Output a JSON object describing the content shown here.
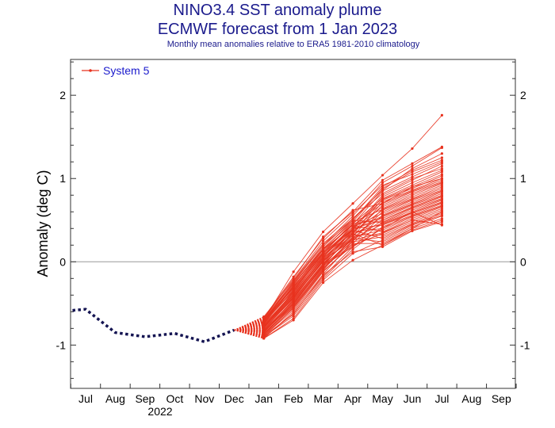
{
  "chart_data": {
    "type": "line",
    "title": "NINO3.4 SST anomaly plume",
    "subtitle": "ECMWF forecast from 1 Jan 2023",
    "caption": "Monthly mean anomalies relative to ERA5 1981-2010 climatology",
    "ylabel": "Anomaly (deg C)",
    "xlabel": "",
    "x_ticks": [
      "Jul",
      "Aug",
      "Sep",
      "Oct",
      "Nov",
      "Dec",
      "Jan",
      "Feb",
      "Mar",
      "Apr",
      "May",
      "Jun",
      "Jul",
      "Aug",
      "Sep"
    ],
    "year_label": "2022",
    "y_ticks": [
      "-1",
      "0",
      "1",
      "2"
    ],
    "y_tick_values": [
      -1,
      0,
      1,
      2
    ],
    "ylim": [
      -1.52,
      2.43
    ],
    "zero_line": true,
    "grid": false,
    "legend": {
      "position": "top-left",
      "entries": [
        "System 5"
      ]
    },
    "colors": {
      "forecast": "#e8321e",
      "observed": "#141452",
      "title": "#1a1a8c"
    },
    "observed": {
      "x": [
        "Jun",
        "Jul",
        "Aug",
        "Sep",
        "Oct",
        "Nov",
        "Dec"
      ],
      "y": [
        -0.6,
        -0.57,
        -0.85,
        -0.9,
        -0.86,
        -0.96,
        -0.82
      ]
    },
    "forecast": {
      "name": "System 5",
      "start": {
        "x": "Dec",
        "y": -0.82
      },
      "x": [
        "Jan",
        "Feb",
        "Mar",
        "Apr",
        "May",
        "Jun",
        "Jul"
      ],
      "members": [
        [
          -0.7,
          -0.12,
          0.36,
          0.7,
          1.04,
          1.36,
          1.76
        ],
        [
          -0.68,
          -0.2,
          0.3,
          0.6,
          0.98,
          1.18,
          1.38
        ],
        [
          -0.72,
          -0.25,
          0.2,
          0.55,
          0.95,
          1.15,
          1.37
        ],
        [
          -0.75,
          -0.3,
          0.15,
          0.5,
          0.9,
          1.1,
          1.25
        ],
        [
          -0.8,
          -0.35,
          0.1,
          0.48,
          0.88,
          1.08,
          1.22
        ],
        [
          -0.66,
          -0.22,
          0.25,
          0.58,
          0.92,
          1.05,
          1.2
        ],
        [
          -0.78,
          -0.4,
          0.05,
          0.45,
          0.85,
          1.02,
          1.18
        ],
        [
          -0.82,
          -0.42,
          0.0,
          0.4,
          0.8,
          0.98,
          1.15
        ],
        [
          -0.74,
          -0.28,
          0.18,
          0.52,
          0.82,
          1.0,
          1.12
        ],
        [
          -0.85,
          -0.45,
          -0.02,
          0.38,
          0.78,
          0.95,
          1.1
        ],
        [
          -0.7,
          -0.32,
          0.12,
          0.46,
          0.76,
          0.92,
          1.08
        ],
        [
          -0.88,
          -0.5,
          -0.05,
          0.35,
          0.75,
          0.9,
          1.05
        ],
        [
          -0.76,
          -0.38,
          0.08,
          0.42,
          0.74,
          0.88,
          1.03
        ],
        [
          -0.9,
          -0.55,
          -0.1,
          0.3,
          0.72,
          0.86,
          1.0
        ],
        [
          -0.72,
          -0.3,
          0.14,
          0.44,
          0.7,
          0.85,
          0.98
        ],
        [
          -0.84,
          -0.48,
          -0.04,
          0.34,
          0.68,
          0.84,
          0.96
        ],
        [
          -0.79,
          -0.36,
          0.06,
          0.4,
          0.66,
          0.82,
          0.95
        ],
        [
          -0.92,
          -0.6,
          -0.15,
          0.25,
          0.64,
          0.8,
          0.94
        ],
        [
          -0.69,
          -0.26,
          0.16,
          0.48,
          0.63,
          0.78,
          0.92
        ],
        [
          -0.81,
          -0.44,
          0.02,
          0.36,
          0.62,
          0.76,
          0.9
        ],
        [
          -0.86,
          -0.52,
          -0.08,
          0.28,
          0.6,
          0.75,
          0.88
        ],
        [
          -0.73,
          -0.34,
          0.1,
          0.42,
          0.58,
          0.74,
          0.86
        ],
        [
          -0.89,
          -0.58,
          -0.12,
          0.22,
          0.56,
          0.72,
          0.85
        ],
        [
          -0.77,
          -0.4,
          0.04,
          0.38,
          0.55,
          0.7,
          0.84
        ],
        [
          -0.83,
          -0.46,
          -0.03,
          0.32,
          0.54,
          0.69,
          0.82
        ],
        [
          -0.71,
          -0.29,
          0.12,
          0.45,
          0.52,
          0.68,
          0.8
        ],
        [
          -0.87,
          -0.54,
          -0.09,
          0.26,
          0.5,
          0.66,
          0.79
        ],
        [
          -0.75,
          -0.37,
          0.07,
          0.4,
          0.5,
          0.65,
          0.78
        ],
        [
          -0.91,
          -0.62,
          -0.18,
          0.18,
          0.48,
          0.64,
          0.76
        ],
        [
          -0.68,
          -0.24,
          0.2,
          0.5,
          0.47,
          0.62,
          0.75
        ],
        [
          -0.8,
          -0.43,
          0.0,
          0.34,
          0.46,
          0.6,
          0.74
        ],
        [
          -0.85,
          -0.5,
          -0.06,
          0.28,
          0.45,
          0.59,
          0.72
        ],
        [
          -0.74,
          -0.33,
          0.1,
          0.4,
          0.44,
          0.58,
          0.71
        ],
        [
          -0.9,
          -0.65,
          -0.2,
          0.15,
          0.42,
          0.56,
          0.7
        ],
        [
          -0.78,
          -0.41,
          0.03,
          0.36,
          0.4,
          0.55,
          0.68
        ],
        [
          -0.82,
          -0.47,
          -0.02,
          0.3,
          0.38,
          0.54,
          0.67
        ],
        [
          -0.7,
          -0.27,
          0.15,
          0.44,
          0.36,
          0.52,
          0.66
        ],
        [
          -0.88,
          -0.56,
          -0.11,
          0.2,
          0.34,
          0.5,
          0.64
        ],
        [
          -0.76,
          -0.39,
          0.05,
          0.32,
          0.32,
          0.48,
          0.62
        ],
        [
          -0.84,
          -0.49,
          -0.04,
          0.24,
          0.3,
          0.46,
          0.6
        ],
        [
          -0.72,
          -0.31,
          0.11,
          0.38,
          0.28,
          0.45,
          0.58
        ],
        [
          -0.92,
          -0.68,
          -0.22,
          0.1,
          0.26,
          0.44,
          0.56
        ],
        [
          -0.79,
          -0.42,
          0.01,
          0.28,
          0.24,
          0.42,
          0.55
        ],
        [
          -0.86,
          -0.53,
          -0.07,
          0.22,
          0.22,
          0.4,
          0.52
        ],
        [
          -0.73,
          -0.35,
          0.09,
          0.34,
          0.2,
          0.38,
          0.5
        ],
        [
          -0.89,
          -0.63,
          -0.16,
          0.12,
          0.18,
          0.37,
          0.48
        ],
        [
          -0.77,
          -0.44,
          0.02,
          0.26,
          0.35,
          0.5,
          0.45
        ],
        [
          -0.83,
          -0.51,
          -0.05,
          0.18,
          0.4,
          0.6,
          0.44
        ],
        [
          -0.67,
          -0.18,
          0.28,
          0.62,
          0.7,
          0.9,
          1.0
        ],
        [
          -0.71,
          -0.23,
          0.22,
          0.52,
          0.86,
          1.12,
          1.3
        ],
        [
          -0.92,
          -0.7,
          -0.25,
          0.02,
          0.2,
          0.4,
          0.6
        ]
      ]
    }
  }
}
